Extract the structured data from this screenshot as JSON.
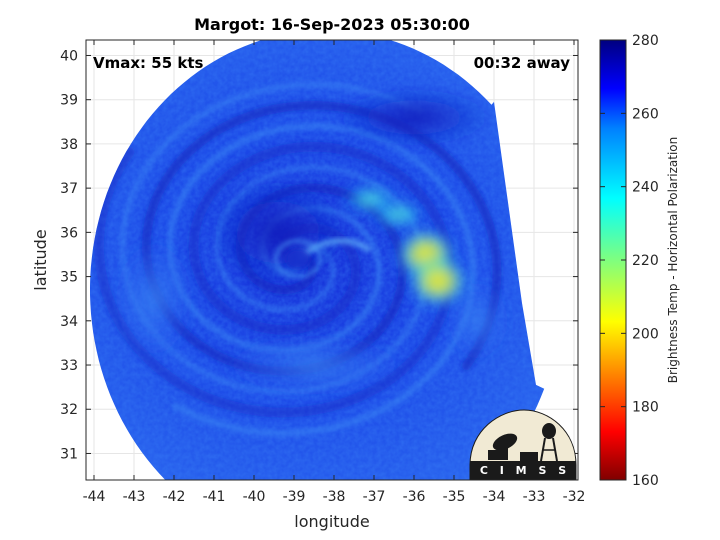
{
  "chart_data": {
    "type": "heatmap",
    "title": "Margot: 16-Sep-2023 05:30:00",
    "xlabel": "longitude",
    "ylabel": "latitude",
    "xlim": [
      -44.2,
      -31.9
    ],
    "ylim": [
      30.4,
      40.35
    ],
    "x_ticks": [
      -44,
      -43,
      -42,
      -41,
      -40,
      -39,
      -38,
      -37,
      -36,
      -35,
      -34,
      -33,
      -32
    ],
    "y_ticks": [
      31,
      32,
      33,
      34,
      35,
      36,
      37,
      38,
      39,
      40
    ],
    "grid": true,
    "annotations": {
      "vmax": "Vmax: 55 kts",
      "time_away": "00:32 away"
    },
    "colorbar": {
      "label": "Brightness Temp - Horizontal Polarization",
      "min": 160,
      "max": 280,
      "ticks": [
        160,
        180,
        200,
        220,
        240,
        260,
        280
      ],
      "colormap": "jet"
    },
    "storm_center": {
      "lon": -38.9,
      "lat": 35.4
    },
    "swath": {
      "center": {
        "lon": -38.2,
        "lat": 34.7
      },
      "radius_deg": 5.9,
      "cut_edge": [
        {
          "lon": -34.0,
          "lat": 38.95
        },
        {
          "lon": -33.7,
          "lat": 37.0
        },
        {
          "lon": -33.3,
          "lat": 34.4
        },
        {
          "lon": -32.95,
          "lat": 32.55
        }
      ]
    },
    "warm_core_features": [
      {
        "lon": -35.7,
        "lat": 35.5,
        "value": 205
      },
      {
        "lon": -35.4,
        "lat": 34.9,
        "value": 212
      },
      {
        "lon": -36.4,
        "lat": 36.4,
        "value": 228
      },
      {
        "lon": -37.1,
        "lat": 36.75,
        "value": 238
      }
    ]
  },
  "logo": {
    "text": "C I M S S"
  }
}
